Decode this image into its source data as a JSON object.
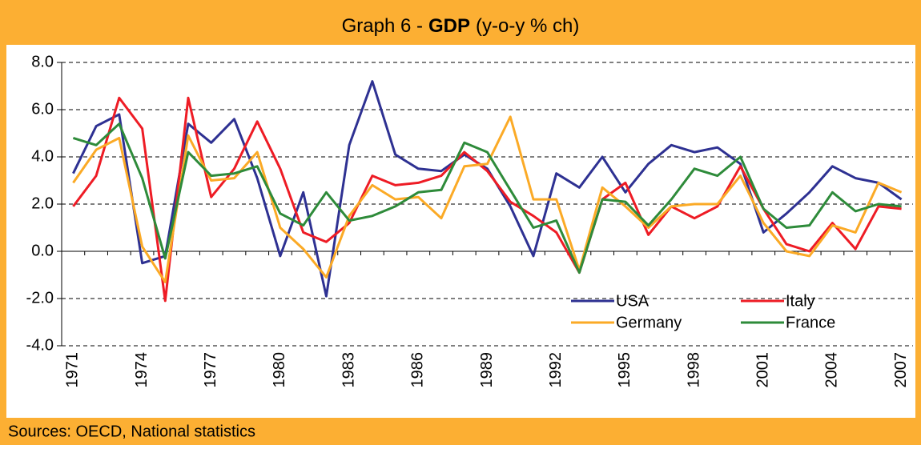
{
  "chart_data": {
    "type": "line",
    "title_prefix": "Graph 6 -",
    "title_bold": "GDP",
    "title_suffix": "(y-o-y % ch)",
    "source": "Sources: OECD, National statistics",
    "x": [
      1971,
      1972,
      1973,
      1974,
      1975,
      1976,
      1977,
      1978,
      1979,
      1980,
      1981,
      1982,
      1983,
      1984,
      1985,
      1986,
      1987,
      1988,
      1989,
      1990,
      1991,
      1992,
      1993,
      1994,
      1995,
      1996,
      1997,
      1998,
      1999,
      2000,
      2001,
      2002,
      2003,
      2004,
      2005,
      2006,
      2007
    ],
    "xlim": [
      1970.5,
      2007.5
    ],
    "xticks": [
      1971,
      1974,
      1977,
      1980,
      1983,
      1986,
      1989,
      1992,
      1995,
      1998,
      2001,
      2004,
      2007
    ],
    "ylim": [
      -4,
      8
    ],
    "yticks": [
      {
        "value": -4,
        "label": "-4.0"
      },
      {
        "value": -2,
        "label": "-2.0"
      },
      {
        "value": 0,
        "label": "0.0"
      },
      {
        "value": 2,
        "label": "2.0"
      },
      {
        "value": 4,
        "label": "4.0"
      },
      {
        "value": 6,
        "label": "6.0"
      },
      {
        "value": 8,
        "label": "8.0"
      }
    ],
    "grid": true,
    "legend_position": "lower right",
    "series": [
      {
        "name": "USA",
        "color": "#2e3192",
        "values": [
          3.3,
          5.3,
          5.8,
          -0.5,
          -0.2,
          5.4,
          4.6,
          5.6,
          3.1,
          -0.2,
          2.5,
          -1.9,
          4.5,
          7.2,
          4.1,
          3.5,
          3.4,
          4.1,
          3.5,
          1.9,
          -0.2,
          3.3,
          2.7,
          4.0,
          2.5,
          3.7,
          4.5,
          4.2,
          4.4,
          3.7,
          0.8,
          1.6,
          2.5,
          3.6,
          3.1,
          2.9,
          2.2
        ]
      },
      {
        "name": "Italy",
        "color": "#ee1c25",
        "values": [
          1.9,
          3.2,
          6.5,
          5.2,
          -2.1,
          6.5,
          2.3,
          3.5,
          5.5,
          3.5,
          0.8,
          0.4,
          1.2,
          3.2,
          2.8,
          2.9,
          3.2,
          4.2,
          3.4,
          2.1,
          1.5,
          0.8,
          -0.9,
          2.2,
          2.9,
          0.7,
          1.9,
          1.4,
          1.9,
          3.6,
          1.8,
          0.3,
          0.0,
          1.2,
          0.1,
          1.9,
          1.8
        ]
      },
      {
        "name": "Germany",
        "color": "#fbaa26",
        "values": [
          2.9,
          4.3,
          4.8,
          0.2,
          -1.3,
          4.9,
          3.0,
          3.1,
          4.2,
          1.0,
          0.1,
          -1.1,
          1.5,
          2.8,
          2.2,
          2.3,
          1.4,
          3.6,
          3.7,
          5.7,
          2.2,
          2.2,
          -0.8,
          2.7,
          1.9,
          1.0,
          1.9,
          2.0,
          2.0,
          3.2,
          1.2,
          0.0,
          -0.2,
          1.1,
          0.8,
          2.9,
          2.5
        ]
      },
      {
        "name": "France",
        "color": "#2e8b3a",
        "values": [
          4.8,
          4.5,
          5.4,
          3.1,
          -0.3,
          4.2,
          3.2,
          3.3,
          3.6,
          1.6,
          1.1,
          2.5,
          1.3,
          1.5,
          1.9,
          2.5,
          2.6,
          4.6,
          4.2,
          2.6,
          1.0,
          1.3,
          -0.9,
          2.2,
          2.1,
          1.1,
          2.2,
          3.5,
          3.2,
          4.0,
          1.8,
          1.0,
          1.1,
          2.5,
          1.7,
          2.0,
          1.9
        ]
      }
    ]
  }
}
